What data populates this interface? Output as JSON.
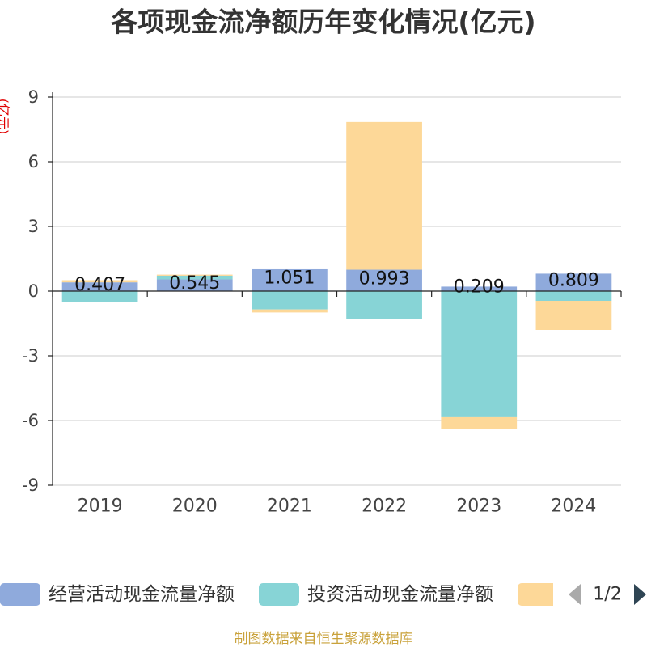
{
  "footer": "制图数据来自恒生聚源数据库",
  "colors": {
    "unit_label": "#e00000",
    "footer": "#c9a23b"
  },
  "legend": {
    "pager": {
      "text": "1/2",
      "prev_color": "#aaaaaa",
      "next_color": "#2f4554",
      "prev_icon": "triangle-left-icon",
      "next_icon": "triangle-right-icon"
    }
  },
  "chart_data": {
    "type": "bar",
    "stacked": true,
    "title": "各项现金流净额历年变化情况(亿元)",
    "ylabel": "(亿元)",
    "xlabel": "",
    "categories": [
      "2019",
      "2020",
      "2021",
      "2022",
      "2023",
      "2024"
    ],
    "ylim": [
      -9,
      9
    ],
    "yticks": [
      -9,
      -6,
      -3,
      0,
      3,
      6,
      9
    ],
    "grid": true,
    "legend_position": "bottom",
    "series": [
      {
        "name": "经营活动现金流量净额",
        "color": "#8faadc",
        "show_labels": true,
        "values": [
          0.407,
          0.545,
          1.051,
          0.993,
          0.209,
          0.809
        ]
      },
      {
        "name": "投资活动现金流量净额",
        "color": "#87d4d6",
        "values": [
          -0.49,
          0.17,
          -0.85,
          -1.31,
          -5.81,
          -0.45
        ]
      },
      {
        "color": "#fdd898",
        "values": [
          0.1,
          0.05,
          -0.14,
          6.85,
          -0.57,
          -1.35
        ]
      }
    ]
  }
}
